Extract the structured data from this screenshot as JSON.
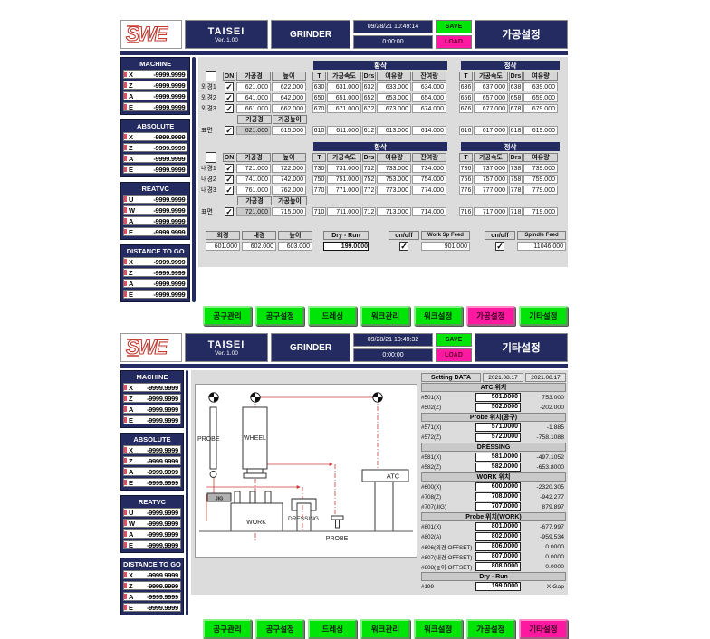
{
  "colors": {
    "navy": "#242b61",
    "green": "#00e408",
    "pink": "#ff18a0",
    "logo_red": "#c03a30",
    "line_red": "#cc3b3b",
    "bg_gray": "#dcdcdc"
  },
  "header": {
    "logo": "SWE",
    "app": "TAISEI",
    "version": "Ver. 1.00",
    "machine": "GRINDER",
    "elapsed": "0:00:00",
    "save": "SAVE",
    "load": "LOAD"
  },
  "sidebar": {
    "sections": [
      {
        "title": "MACHINE",
        "rows": [
          [
            "X",
            "-9999.9999"
          ],
          [
            "Z",
            "-9999.9999"
          ],
          [
            "A",
            "-9999.9999"
          ],
          [
            "E",
            "-9999.9999"
          ]
        ]
      },
      {
        "title": "ABSOLUTE",
        "rows": [
          [
            "X",
            "-9999.9999"
          ],
          [
            "Z",
            "-9999.9999"
          ],
          [
            "A",
            "-9999.9999"
          ],
          [
            "E",
            "-9999.9999"
          ]
        ]
      },
      {
        "title": "REATVC",
        "rows": [
          [
            "U",
            "-9999.9999"
          ],
          [
            "W",
            "-9999.9999"
          ],
          [
            "A",
            "-9999.9999"
          ],
          [
            "E",
            "-9999.9999"
          ]
        ]
      },
      {
        "title": "DISTANCE TO GO",
        "rows": [
          [
            "X",
            "-9999.9999"
          ],
          [
            "Z",
            "-9999.9999"
          ],
          [
            "A",
            "-9999.9999"
          ],
          [
            "E",
            "-9999.9999"
          ]
        ]
      }
    ]
  },
  "nav": {
    "items": [
      "공구관리",
      "공구설정",
      "드레싱",
      "워크관리",
      "워크설정",
      "가공설정",
      "기타설정"
    ]
  },
  "panel1": {
    "datetime": "09/28/21 10:49:14",
    "title": "가공설정",
    "active_nav": 5,
    "tables": [
      {
        "group1": "황삭",
        "group2": "정삭",
        "on": "ON",
        "cols": {
          "d": "가공경",
          "h": "높이",
          "t": "T",
          "speed": "가공속도",
          "drs": "Drs",
          "allow": "여유량",
          "remain": "잔여량"
        },
        "rows": [
          {
            "label": "외경1",
            "checked": true,
            "d": "621.000",
            "h": "622.000",
            "rough": [
              "630",
              "631.000",
              "632",
              "633.000",
              "634.000"
            ],
            "finish": [
              "636",
              "637.000",
              "638",
              "639.000"
            ]
          },
          {
            "label": "외경2",
            "checked": true,
            "d": "641.000",
            "h": "642.000",
            "rough": [
              "650",
              "651.000",
              "652",
              "653.000",
              "654.000"
            ],
            "finish": [
              "656",
              "657.000",
              "658",
              "659.000"
            ]
          },
          {
            "label": "외경3",
            "checked": true,
            "d": "661.000",
            "h": "662.000",
            "rough": [
              "670",
              "671.000",
              "672",
              "673.000",
              "674.000"
            ],
            "finish": [
              "676",
              "677.000",
              "678",
              "679.000"
            ]
          }
        ],
        "surface": {
          "label": "표면",
          "checked": true,
          "d_header": "가공경",
          "h_header": "가공높이",
          "d": "621.000",
          "h": "615.000",
          "rough": [
            "610",
            "611.000",
            "612",
            "613.000",
            "614.000"
          ],
          "finish": [
            "616",
            "617.000",
            "618",
            "619.000"
          ]
        }
      },
      {
        "group1": "황삭",
        "group2": "정삭",
        "on": "ON",
        "cols": {
          "d": "가공경",
          "h": "높이",
          "t": "T",
          "speed": "가공속도",
          "drs": "Drs",
          "allow": "여유량",
          "remain": "잔여량"
        },
        "rows": [
          {
            "label": "내경1",
            "checked": true,
            "d": "721.000",
            "h": "722.000",
            "rough": [
              "730",
              "731.000",
              "732",
              "733.000",
              "734.000"
            ],
            "finish": [
              "736",
              "737.000",
              "738",
              "739.000"
            ]
          },
          {
            "label": "내경2",
            "checked": true,
            "d": "741.000",
            "h": "742.000",
            "rough": [
              "750",
              "751.000",
              "752",
              "753.000",
              "754.000"
            ],
            "finish": [
              "756",
              "757.000",
              "758",
              "759.000"
            ]
          },
          {
            "label": "내경3",
            "checked": true,
            "d": "761.000",
            "h": "762.000",
            "rough": [
              "770",
              "771.000",
              "772",
              "773.000",
              "774.000"
            ],
            "finish": [
              "776",
              "777.000",
              "778",
              "779.000"
            ]
          }
        ],
        "surface": {
          "label": "표면",
          "checked": true,
          "d_header": "가공경",
          "h_header": "가공높이",
          "d": "721.000",
          "h": "715.000",
          "rough": [
            "710",
            "711.000",
            "712",
            "713.000",
            "714.000"
          ],
          "finish": [
            "716",
            "717.000",
            "718",
            "719.000"
          ]
        }
      }
    ],
    "bottom": {
      "cols": [
        [
          "외경",
          "601.000"
        ],
        [
          "내경",
          "602.000"
        ],
        [
          "높이",
          "603.000"
        ]
      ],
      "dryrun_label": "Dry - Run",
      "dryrun_value": "199.0000",
      "onoff": "on/off",
      "work_label": "Work Sp Feed",
      "work_value": "901.000",
      "work_on": true,
      "spindle_label": "Spindle Feed",
      "spindle_value": "11046.000",
      "spindle_on": true
    }
  },
  "panel2": {
    "datetime": "09/28/21 10:49:32",
    "title": "기타설정",
    "active_nav": 6,
    "diagram": {
      "probe_left": "PROBE",
      "wheel": "WHEEL",
      "jig": "JIG",
      "work": "WORK",
      "dressing": "DRESSING",
      "probe_bottom": "PROBE",
      "atc": "ATC"
    },
    "settings": {
      "header": "Setting DATA",
      "dates": [
        "2021.08.17",
        "2021.08.17"
      ],
      "sections": [
        {
          "title": "ATC 위치",
          "rows": [
            [
              "#501(X)",
              "501.0000",
              "753.000"
            ],
            [
              "#502(Z)",
              "502.0000",
              "-202.000"
            ]
          ]
        },
        {
          "title": "Probe 위치(공구)",
          "rows": [
            [
              "#571(X)",
              "571.0000",
              "-1.885"
            ],
            [
              "#572(Z)",
              "572.0000",
              "-758.1088"
            ]
          ]
        },
        {
          "title": "DRESSING",
          "rows": [
            [
              "#581(X)",
              "581.0000",
              "-497.1052"
            ],
            [
              "#582(Z)",
              "582.0000",
              "-653.8000"
            ]
          ]
        },
        {
          "title": "WORK 위치",
          "rows": [
            [
              "#600(X)",
              "600.0000",
              "-2320.305"
            ],
            [
              "#708(Z)",
              "708.0000",
              "-942.277"
            ],
            [
              "#707(JIG)",
              "707.0000",
              "879.897"
            ]
          ]
        },
        {
          "title": "Probe 위치(WORK)",
          "rows": [
            [
              "#801(X)",
              "801.0000",
              "-677.997"
            ],
            [
              "#802(A)",
              "802.0000",
              "-959.534"
            ],
            [
              "#806(외경 OFFSET)",
              "806.0000",
              "0.0000"
            ],
            [
              "#807(내경 OFFSET)",
              "807.0000",
              "0.0000"
            ],
            [
              "#808(높이 OFFSET)",
              "808.0000",
              "0.0000"
            ]
          ]
        },
        {
          "title": "Dry - Run",
          "rows": [
            [
              "#199",
              "199.0000",
              "X Gap"
            ]
          ]
        }
      ]
    }
  }
}
